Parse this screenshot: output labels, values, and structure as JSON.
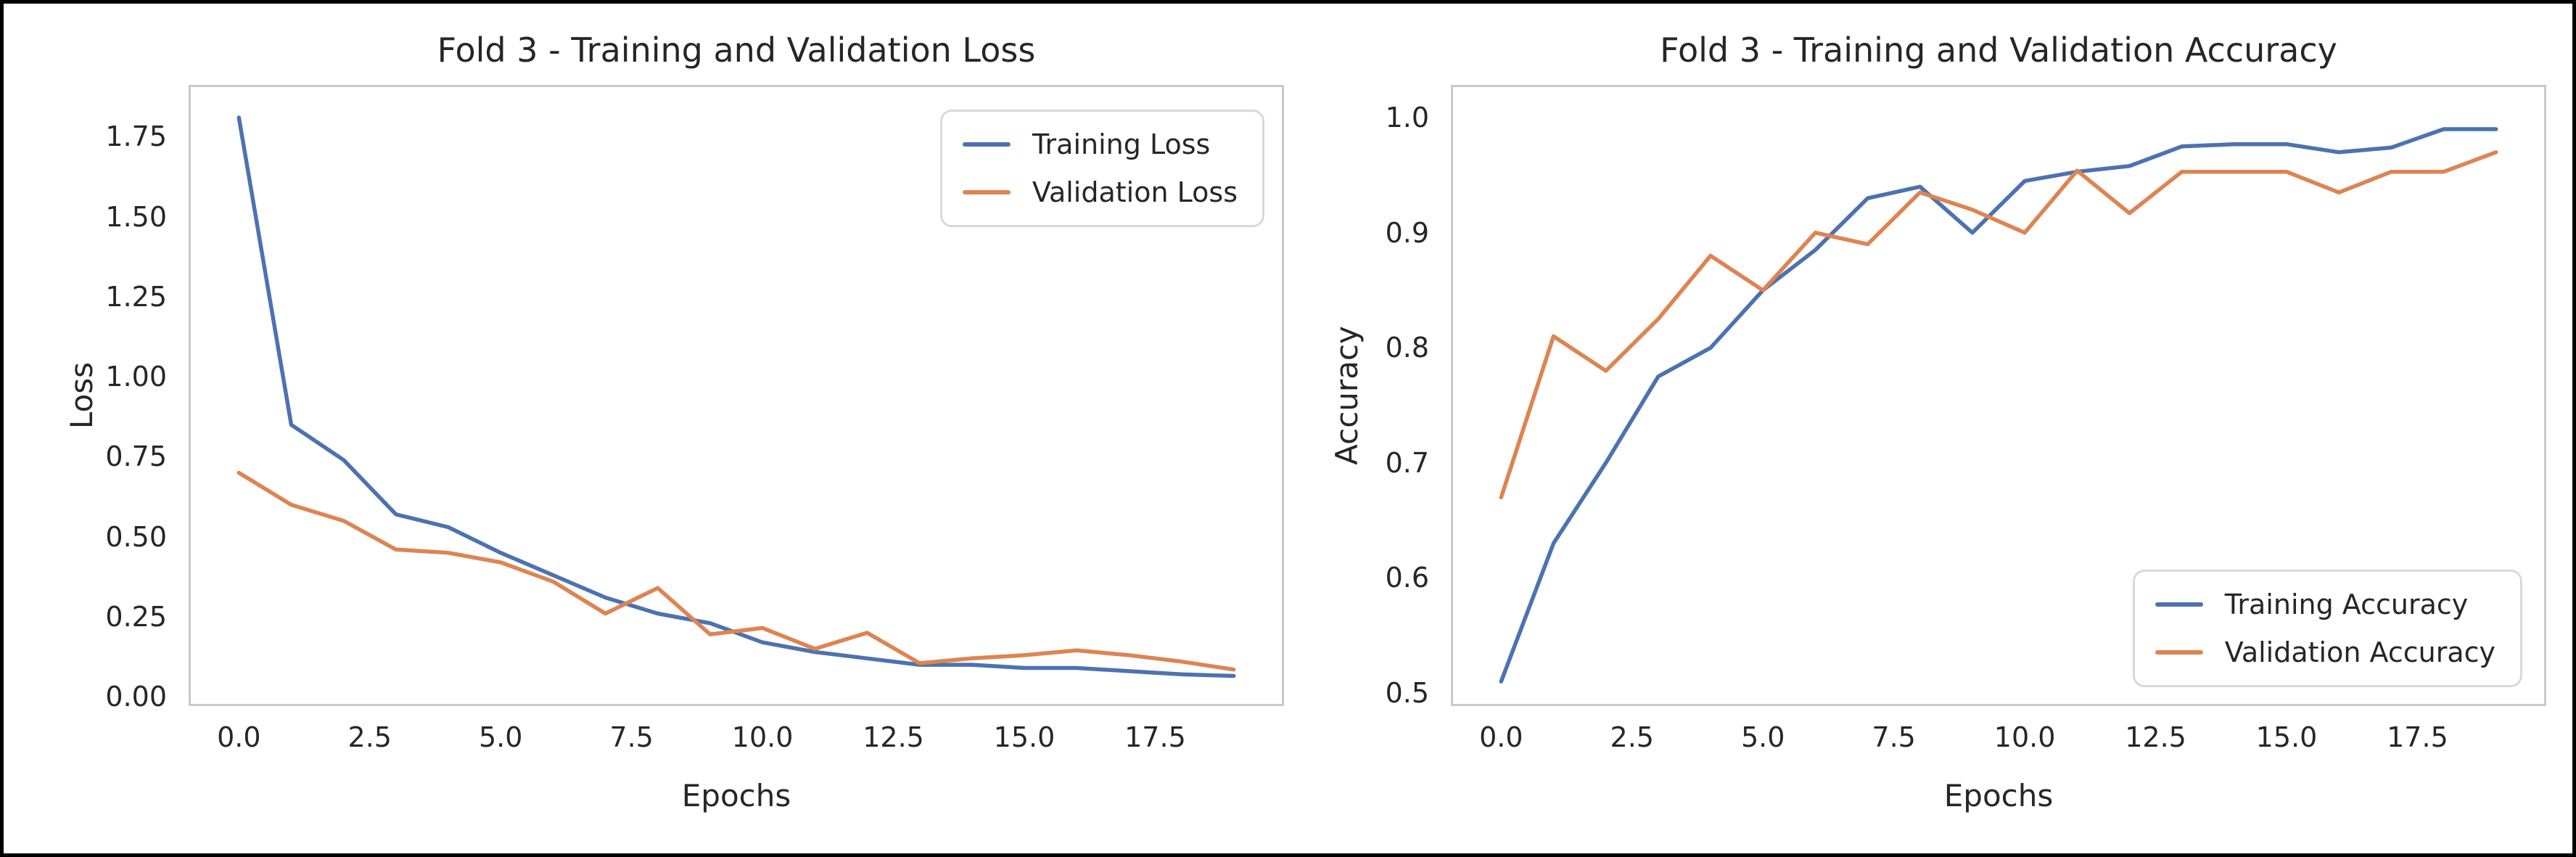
{
  "colors": {
    "train": "#4C72B0",
    "val": "#DD8452",
    "spine": "#c9c9c9",
    "text": "#262626",
    "legend_border": "#d9d9d9",
    "outer_frame": "#000000",
    "background": "#ffffff"
  },
  "chart_data": [
    {
      "type": "line",
      "title": "Fold 3 - Training and Validation Loss",
      "xlabel": "Epochs",
      "ylabel": "Loss",
      "grid": false,
      "legend_position": "upper right",
      "xlim": [
        -0.96,
        19.96
      ],
      "ylim": [
        -0.029,
        1.912
      ],
      "x": [
        0,
        1,
        2,
        3,
        4,
        5,
        6,
        7,
        8,
        9,
        10,
        11,
        12,
        13,
        14,
        15,
        16,
        17,
        18,
        19
      ],
      "xticks": {
        "values": [
          0,
          2.5,
          5,
          7.5,
          10,
          12.5,
          15,
          17.5
        ],
        "labels": [
          "0.0",
          "2.5",
          "5.0",
          "7.5",
          "10.0",
          "12.5",
          "15.0",
          "17.5"
        ]
      },
      "yticks": {
        "values": [
          0,
          0.25,
          0.5,
          0.75,
          1.0,
          1.25,
          1.5,
          1.75
        ],
        "labels": [
          "0.00",
          "0.25",
          "0.50",
          "0.75",
          "1.00",
          "1.25",
          "1.50",
          "1.75"
        ]
      },
      "series": [
        {
          "name": "Training Loss",
          "color": "train",
          "values": [
            1.81,
            0.85,
            0.74,
            0.57,
            0.53,
            0.45,
            0.38,
            0.31,
            0.26,
            0.23,
            0.17,
            0.14,
            0.12,
            0.1,
            0.1,
            0.09,
            0.09,
            0.08,
            0.07,
            0.065
          ]
        },
        {
          "name": "Validation Loss",
          "color": "val",
          "values": [
            0.7,
            0.6,
            0.55,
            0.46,
            0.45,
            0.42,
            0.36,
            0.26,
            0.34,
            0.195,
            0.215,
            0.15,
            0.2,
            0.105,
            0.12,
            0.13,
            0.145,
            0.13,
            0.11,
            0.085
          ]
        }
      ]
    },
    {
      "type": "line",
      "title": "Fold 3 - Training and Validation Accuracy",
      "xlabel": "Epochs",
      "ylabel": "Accuracy",
      "grid": false,
      "legend_position": "lower right",
      "xlim": [
        -0.96,
        19.96
      ],
      "ylim": [
        0.4886,
        1.0285
      ],
      "x": [
        0,
        1,
        2,
        3,
        4,
        5,
        6,
        7,
        8,
        9,
        10,
        11,
        12,
        13,
        14,
        15,
        16,
        17,
        18,
        19
      ],
      "xticks": {
        "values": [
          0,
          2.5,
          5,
          7.5,
          10,
          12.5,
          15,
          17.5
        ],
        "labels": [
          "0.0",
          "2.5",
          "5.0",
          "7.5",
          "10.0",
          "12.5",
          "15.0",
          "17.5"
        ]
      },
      "yticks": {
        "values": [
          0.5,
          0.6,
          0.7,
          0.8,
          0.9,
          1.0
        ],
        "labels": [
          "0.5",
          "0.6",
          "0.7",
          "0.8",
          "0.9",
          "1.0"
        ]
      },
      "series": [
        {
          "name": "Training Accuracy",
          "color": "train",
          "values": [
            0.51,
            0.63,
            0.7,
            0.775,
            0.8,
            0.85,
            0.885,
            0.93,
            0.94,
            0.9,
            0.945,
            0.953,
            0.958,
            0.975,
            0.977,
            0.977,
            0.97,
            0.974,
            0.99,
            0.99
          ]
        },
        {
          "name": "Validation Accuracy",
          "color": "val",
          "values": [
            0.67,
            0.81,
            0.78,
            0.825,
            0.88,
            0.85,
            0.9,
            0.89,
            0.935,
            0.92,
            0.9,
            0.954,
            0.917,
            0.953,
            0.953,
            0.953,
            0.935,
            0.953,
            0.953,
            0.97
          ]
        }
      ]
    }
  ]
}
